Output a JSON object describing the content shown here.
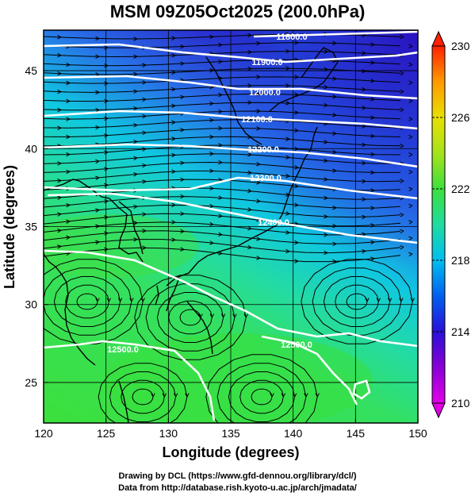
{
  "title": "MSM 09Z05Oct2025 (200.0hPa)",
  "xlabel": "Longitude (degrees)",
  "ylabel": "Latitude  (degrees)",
  "credits": {
    "line1": "Drawing by DCL (https://www.gfd-dennou.org/library/dcl/)",
    "line2": "Data from http://database.rish.kyoto-u.ac.jp/arch/jmadata/"
  },
  "map": {
    "lon_range": [
      120,
      150
    ],
    "lat_range": [
      22.4,
      47.6
    ],
    "lon_ticks": [
      120,
      125,
      130,
      135,
      140,
      145,
      150
    ],
    "lat_ticks": [
      25,
      30,
      35,
      40,
      45
    ],
    "gridlines": true
  },
  "colorbar": {
    "range": [
      210,
      230
    ],
    "labels": [
      210,
      214,
      218,
      222,
      226,
      230
    ]
  },
  "contours": [
    {
      "label": "11800.0"
    },
    {
      "label": "11900.0"
    },
    {
      "label": "12000.0"
    },
    {
      "label": "12100.0"
    },
    {
      "label": "12200.0"
    },
    {
      "label": "12300.0"
    },
    {
      "label": "12400.0"
    },
    {
      "label": "12500.0"
    },
    {
      "label": "12500.0"
    }
  ]
}
